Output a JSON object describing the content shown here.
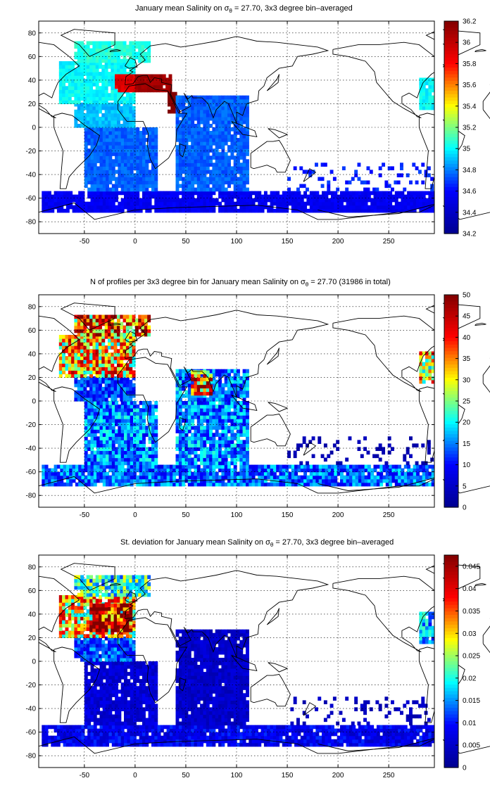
{
  "chart_data": [
    {
      "type": "heatmap",
      "title_parts": {
        "pre": "January mean Salinity on ",
        "sym": "σ",
        "sub": "θ",
        "post": " = 27.70, 3x3 degree bin–averaged"
      },
      "x_ticks": [
        "-50",
        "0",
        "50",
        "100",
        "150",
        "200",
        "250"
      ],
      "y_ticks": [
        "80",
        "60",
        "40",
        "20",
        "0",
        "-20",
        "-40",
        "-60",
        "-80"
      ],
      "xlim": [
        -95,
        295
      ],
      "ylim": [
        -90,
        90
      ],
      "colorbar": {
        "min": 34.2,
        "max": 36.2,
        "ticks": [
          "36.2",
          "36",
          "35.8",
          "35.6",
          "35.4",
          "35.2",
          "35",
          "34.8",
          "34.6",
          "34.4",
          "34.2"
        ]
      },
      "colormap": [
        "#00008f",
        "#0000ff",
        "#00ffff",
        "#ffff00",
        "#ff0000",
        "#800000"
      ],
      "fields": [
        {
          "region": "Southern Ocean band",
          "lon": [
            -92,
            293
          ],
          "lat": [
            -72,
            -54
          ],
          "value": 34.55
        },
        {
          "region": "South Atlantic",
          "lon": [
            -50,
            20
          ],
          "lat": [
            -54,
            0
          ],
          "value": 34.75
        },
        {
          "region": "Tropical Atlantic",
          "lon": [
            -60,
            0
          ],
          "lat": [
            0,
            20
          ],
          "value": 34.9
        },
        {
          "region": "North Atlantic",
          "lon": [
            -75,
            0
          ],
          "lat": [
            20,
            55
          ],
          "value": 35.0
        },
        {
          "region": "Subpolar North Atlantic",
          "lon": [
            -60,
            15
          ],
          "lat": [
            55,
            72
          ],
          "value": 35.05
        },
        {
          "region": "Mediterranean outflow",
          "lon": [
            -20,
            0
          ],
          "lat": [
            30,
            45
          ],
          "value": 35.9
        },
        {
          "region": "Mediterranean Sea",
          "lon": [
            0,
            35
          ],
          "lat": [
            30,
            43
          ],
          "value": 36.1
        },
        {
          "region": "Red Sea",
          "lon": [
            32,
            43
          ],
          "lat": [
            12,
            28
          ],
          "value": 36.2
        },
        {
          "region": "Indian Ocean",
          "lon": [
            40,
            110
          ],
          "lat": [
            -54,
            25
          ],
          "value": 34.75
        },
        {
          "region": "South Pacific (sparse)",
          "lon": [
            150,
            293
          ],
          "lat": [
            -54,
            -30
          ],
          "value": 34.65
        },
        {
          "region": "East Pacific margin",
          "lon": [
            280,
            293
          ],
          "lat": [
            15,
            40
          ],
          "value": 35.0
        }
      ]
    },
    {
      "type": "heatmap",
      "title_parts": {
        "pre": "N of profiles per 3x3 degree bin for January mean Salinity on ",
        "sym": "σ",
        "sub": "θ",
        "post": " = 27.70 (31986 in total)"
      },
      "x_ticks": [
        "-50",
        "0",
        "50",
        "100",
        "150",
        "200",
        "250"
      ],
      "y_ticks": [
        "80",
        "60",
        "40",
        "20",
        "0",
        "-20",
        "-40",
        "-60",
        "-80"
      ],
      "xlim": [
        -95,
        295
      ],
      "ylim": [
        -90,
        90
      ],
      "colorbar": {
        "min": 0,
        "max": 50,
        "ticks": [
          "50",
          "45",
          "40",
          "35",
          "30",
          "25",
          "20",
          "15",
          "10",
          "5",
          "0"
        ]
      },
      "colormap": [
        "#00008f",
        "#0000ff",
        "#00ffff",
        "#ffff00",
        "#ff0000",
        "#800000"
      ],
      "fields": [
        {
          "region": "Southern Ocean band",
          "lon": [
            -92,
            293
          ],
          "lat": [
            -72,
            -54
          ],
          "value": 14
        },
        {
          "region": "South Atlantic",
          "lon": [
            -50,
            20
          ],
          "lat": [
            -54,
            0
          ],
          "value": 15
        },
        {
          "region": "Tropical Atlantic",
          "lon": [
            -60,
            0
          ],
          "lat": [
            0,
            20
          ],
          "value": 12
        },
        {
          "region": "North Atlantic",
          "lon": [
            -75,
            0
          ],
          "lat": [
            20,
            55
          ],
          "value": 33
        },
        {
          "region": "Subpolar North Atlantic",
          "lon": [
            -60,
            15
          ],
          "lat": [
            55,
            72
          ],
          "value": 38
        },
        {
          "region": "Indian Ocean",
          "lon": [
            40,
            110
          ],
          "lat": [
            -54,
            25
          ],
          "value": 15
        },
        {
          "region": "Arabian Sea",
          "lon": [
            55,
            75
          ],
          "lat": [
            5,
            25
          ],
          "value": 38
        },
        {
          "region": "South Pacific (sparse)",
          "lon": [
            150,
            293
          ],
          "lat": [
            -54,
            -30
          ],
          "value": 3
        },
        {
          "region": "East Pacific margin",
          "lon": [
            280,
            293
          ],
          "lat": [
            15,
            40
          ],
          "value": 30
        }
      ]
    },
    {
      "type": "heatmap",
      "title_parts": {
        "pre": "St. deviation for January mean Salinity on ",
        "sym": "σ",
        "sub": "θ",
        "post": " = 27.70, 3x3 degree bin–averaged"
      },
      "x_ticks": [
        "-50",
        "0",
        "50",
        "100",
        "150",
        "200",
        "250"
      ],
      "y_ticks": [
        "80",
        "60",
        "40",
        "20",
        "0",
        "-20",
        "-40",
        "-60",
        "-80"
      ],
      "xlim": [
        -95,
        295
      ],
      "ylim": [
        -90,
        90
      ],
      "colorbar": {
        "min": 0,
        "max": 0.0475,
        "ticks": [
          "0.045",
          "0.04",
          "0.035",
          "0.03",
          "0.025",
          "0.02",
          "0.015",
          "0.01",
          "0.005",
          "0"
        ]
      },
      "colormap": [
        "#00008f",
        "#0000ff",
        "#00ffff",
        "#ffff00",
        "#ff0000",
        "#800000"
      ],
      "fields": [
        {
          "region": "Southern Ocean band",
          "lon": [
            -92,
            293
          ],
          "lat": [
            -72,
            -54
          ],
          "value": 0.008
        },
        {
          "region": "South Atlantic",
          "lon": [
            -50,
            20
          ],
          "lat": [
            -54,
            0
          ],
          "value": 0.006
        },
        {
          "region": "Tropical Atlantic",
          "lon": [
            -60,
            0
          ],
          "lat": [
            0,
            20
          ],
          "value": 0.012
        },
        {
          "region": "North Atlantic",
          "lon": [
            -75,
            0
          ],
          "lat": [
            20,
            55
          ],
          "value": 0.03
        },
        {
          "region": "North Atlantic core",
          "lon": [
            -45,
            -5
          ],
          "lat": [
            25,
            48
          ],
          "value": 0.047
        },
        {
          "region": "Subpolar North Atlantic",
          "lon": [
            -60,
            15
          ],
          "lat": [
            55,
            72
          ],
          "value": 0.02
        },
        {
          "region": "Indian Ocean",
          "lon": [
            40,
            110
          ],
          "lat": [
            -54,
            25
          ],
          "value": 0.005
        },
        {
          "region": "South Pacific (sparse)",
          "lon": [
            150,
            293
          ],
          "lat": [
            -54,
            -30
          ],
          "value": 0.004
        },
        {
          "region": "East Pacific margin",
          "lon": [
            280,
            293
          ],
          "lat": [
            15,
            40
          ],
          "value": 0.015
        }
      ]
    }
  ]
}
